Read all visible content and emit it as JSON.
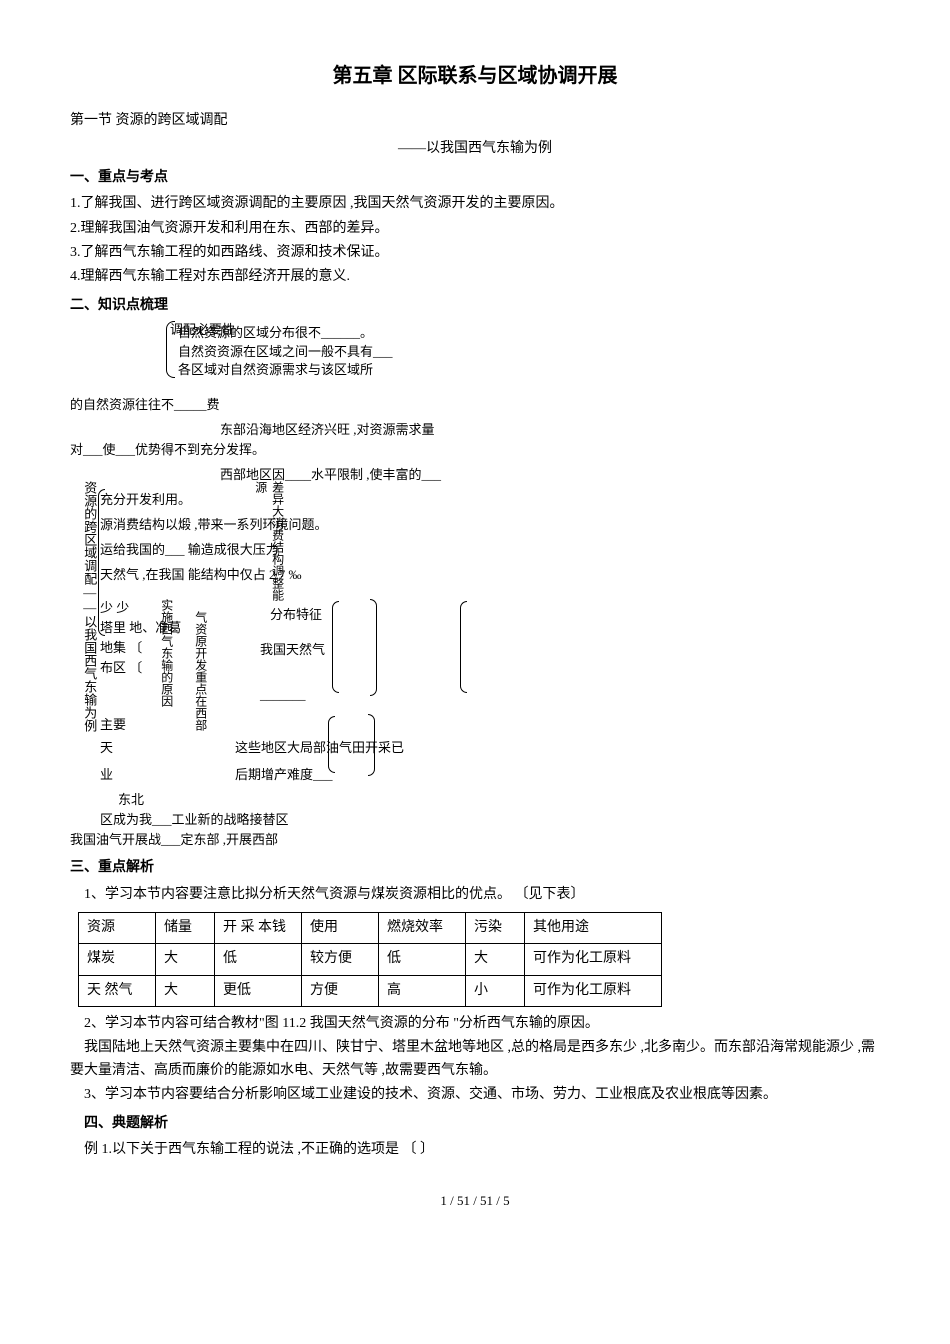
{
  "title": "第五章 区际联系与区域协调开展",
  "section1_title": "第一节 资源的跨区域调配",
  "section1_sub": "——以我国西气东输为例",
  "h1": "一、重点与考点",
  "p1": "1.了解我国、进行跨区域资源调配的主要原因 ,我国天然气资源开发的主要原因。",
  "p2": "2.理解我国油气资源开发和利用在东、西部的差异。",
  "p3": "3.了解西气东输工程的如西路线、资源和技术保证。",
  "p4": "4.理解西气东输工程对东西部经济开展的意义.",
  "h2": "二、知识点梳理",
  "diag": {
    "d1": "调配必要性",
    "d1a": "自然资源的区域分布很不______。",
    "d1b": "自然资资源在区域之间一般不具有___",
    "d1c": "各区域对自然资源需求与该区域所",
    "d2": "的自然资源往往不_____费",
    "d3a": "东部沿海地区经济兴旺 ,对资源需求量",
    "d3b": "对___使___优势得不到充分发挥。",
    "d3c": "西部地区因____水平限制 ,使丰富的___",
    "left_main": "资源的跨区域调配——以我国西气东输为例",
    "d4a": "充分开发利用。",
    "d4b": "源消费结构以煅 ,带来一系列环境问题。",
    "d4c": "运给我国的___ 输造成很大压力",
    "d4d": "天然气 ,在我国 能结构中仅占 2.7 ‰",
    "mid_col": "差异大消费结构调整能源",
    "d5a": "少 少",
    "d5b": "塔里 地、准葛",
    "d5c": "地集 〔",
    "d5d": "布区 〔",
    "mid2": "实施西气东输的原因",
    "mid3": "气资原开发重点在西部",
    "d6a": "分布特征",
    "d6b": "我国天然气",
    "d6c": "_______",
    "d7a": "主要",
    "d7b": "天",
    "d7c": "业",
    "d8a": "这些地区大局部油气田开采已",
    "d8b": "后期增产难度___",
    "d9a": "东北",
    "d9b": "区成为我___工业新的战略接替区",
    "d10": "我国油气开展战___定东部 ,开展西部"
  },
  "h3": "三、重点解析",
  "p5": "1、学习本节内容要注意比拟分析天然气资源与煤炭资源相比的优点。 〔见下表〕",
  "table": {
    "columns": [
      "资源",
      "储量",
      "开 采 本钱",
      "使用",
      "燃烧效率",
      "污染",
      "其他用途"
    ],
    "rows": [
      [
        "煤炭",
        "大",
        "低",
        "较方便",
        "低",
        "大",
        "可作为化工原料"
      ],
      [
        "天 然气",
        "大",
        "更低",
        "方便",
        "高",
        "小",
        "可作为化工原料"
      ]
    ],
    "col_widths": [
      "60px",
      "42px",
      "70px",
      "60px",
      "70px",
      "42px",
      "120px"
    ]
  },
  "p6": "2、学习本节内容可结合教材\"图 11.2 我国天然气资源的分布 \"分析西气东输的原因。",
  "p7": "我国陆地上天然气资源主要集中在四川、陕甘宁、塔里木盆地等地区 ,总的格局是西多东少 ,北多南少。而东部沿海常规能源少 ,需要大量清洁、高质而廉价的能源如水电、天然气等 ,故需要西气东输。",
  "p8": "3、学习本节内容要结合分析影响区域工业建设的技术、资源、交通、市场、劳力、工业根底及农业根底等因素。",
  "h4": "四、典题解析",
  "p9": "例 1.以下关于西气东输工程的说法 ,不正确的选项是 〔 〕",
  "footer": "1 / 51 / 51 / 5"
}
